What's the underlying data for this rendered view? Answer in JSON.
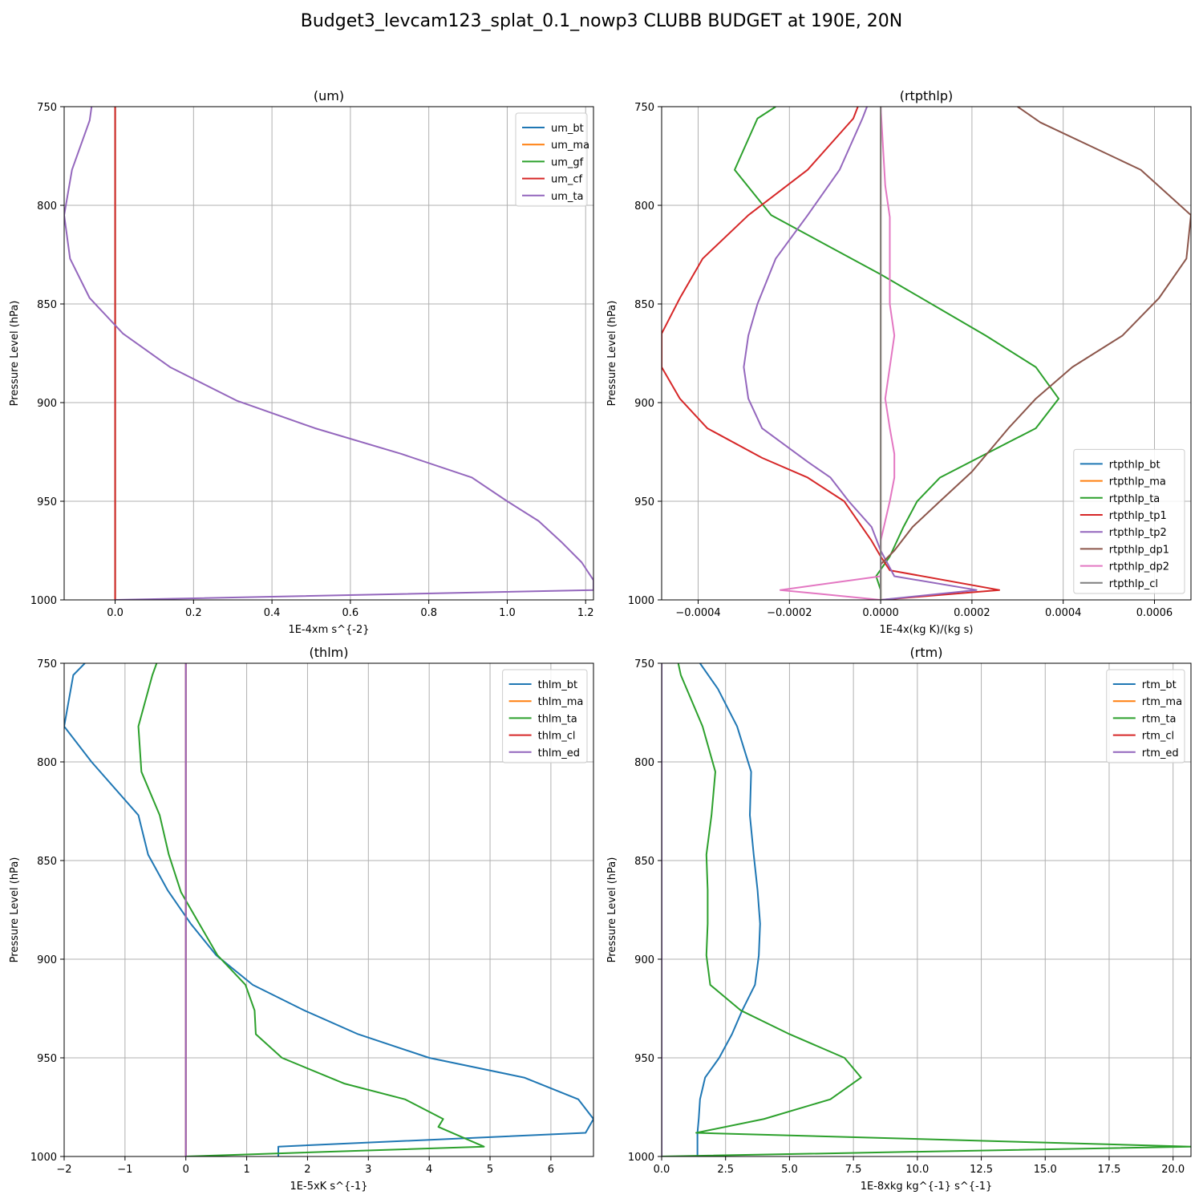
{
  "figure": {
    "title": "Budget3_levcam123_splat_0.1_nowp3 CLUBB BUDGET at 190E, 20N"
  },
  "chart_data": [
    {
      "type": "line",
      "title": "(um)",
      "xlabel": "1E-4xm s^{-2}",
      "ylabel": "Pressure Level (hPa)",
      "xlim": [
        -0.13,
        1.22
      ],
      "ylim": [
        1000,
        750
      ],
      "y_inverted": true,
      "grid": true,
      "legend_position": "upper right",
      "xticks": [
        0.0,
        0.2,
        0.4,
        0.6,
        0.8,
        1.0,
        1.2
      ],
      "xtick_labels": [
        "0.0",
        "0.2",
        "0.4",
        "0.6",
        "0.8",
        "1.0",
        "1.2"
      ],
      "yticks": [
        750,
        800,
        850,
        900,
        950,
        1000
      ],
      "ytick_labels": [
        "750",
        "800",
        "850",
        "900",
        "950",
        "1000"
      ],
      "series": [
        {
          "name": "um_bt",
          "color": "#1f77b4",
          "points": [
            [
              0,
              750
            ],
            [
              0,
              1000
            ]
          ]
        },
        {
          "name": "um_ma",
          "color": "#ff7f0e",
          "points": [
            [
              0,
              750
            ],
            [
              0,
              1000
            ]
          ]
        },
        {
          "name": "um_gf",
          "color": "#2ca02c",
          "points": [
            [
              0,
              750
            ],
            [
              0,
              1000
            ]
          ]
        },
        {
          "name": "um_cf",
          "color": "#d62728",
          "points": [
            [
              0,
              750
            ],
            [
              0,
              1000
            ]
          ]
        },
        {
          "name": "um_ta",
          "color": "#9467bd",
          "points": [
            [
              -0.06,
              750
            ],
            [
              -0.065,
              757
            ],
            [
              -0.11,
              782
            ],
            [
              -0.13,
              805
            ],
            [
              -0.115,
              827
            ],
            [
              -0.065,
              847
            ],
            [
              0.02,
              865
            ],
            [
              0.14,
              882
            ],
            [
              0.31,
              899
            ],
            [
              0.51,
              913
            ],
            [
              0.73,
              926
            ],
            [
              0.91,
              938
            ],
            [
              1.0,
              950
            ],
            [
              1.08,
              960
            ],
            [
              1.14,
              971
            ],
            [
              1.19,
              981
            ],
            [
              1.22,
              990
            ],
            [
              1.22,
              995
            ],
            [
              0.0,
              1000
            ]
          ]
        }
      ]
    },
    {
      "type": "line",
      "title": "(rtpthlp)",
      "xlabel": "1E-4x(kg K)/(kg s)",
      "ylabel": "Pressure Level (hPa)",
      "xlim": [
        -0.00048,
        0.00068
      ],
      "ylim": [
        1000,
        750
      ],
      "y_inverted": true,
      "grid": true,
      "legend_position": "lower right",
      "xticks": [
        -0.0004,
        -0.0002,
        0.0,
        0.0002,
        0.0004,
        0.0006
      ],
      "xtick_labels": [
        "−0.0004",
        "−0.0002",
        "0.0000",
        "0.0002",
        "0.0004",
        "0.0006"
      ],
      "yticks": [
        750,
        800,
        850,
        900,
        950,
        1000
      ],
      "ytick_labels": [
        "750",
        "800",
        "850",
        "900",
        "950",
        "1000"
      ],
      "series": [
        {
          "name": "rtpthlp_bt",
          "color": "#1f77b4",
          "points": [
            [
              0,
              750
            ],
            [
              0,
              1000
            ]
          ]
        },
        {
          "name": "rtpthlp_ma",
          "color": "#ff7f0e",
          "points": [
            [
              0,
              750
            ],
            [
              0,
              1000
            ]
          ]
        },
        {
          "name": "rtpthlp_ta",
          "color": "#2ca02c",
          "points": [
            [
              -0.00023,
              750
            ],
            [
              -0.00027,
              756
            ],
            [
              -0.00032,
              782
            ],
            [
              -0.00024,
              805
            ],
            [
              0.0,
              835
            ],
            [
              0.00023,
              866
            ],
            [
              0.00034,
              882
            ],
            [
              0.00039,
              898
            ],
            [
              0.00034,
              913
            ],
            [
              0.00013,
              938
            ],
            [
              8e-05,
              950
            ],
            [
              5e-05,
              963
            ],
            [
              2e-05,
              978
            ],
            [
              -1e-05,
              988
            ],
            [
              0.0,
              995
            ],
            [
              0.0,
              1000
            ]
          ]
        },
        {
          "name": "rtpthlp_tp1",
          "color": "#d62728",
          "points": [
            [
              -5e-05,
              750
            ],
            [
              -6e-05,
              756
            ],
            [
              -0.00016,
              782
            ],
            [
              -0.00029,
              805
            ],
            [
              -0.00039,
              827
            ],
            [
              -0.00044,
              847
            ],
            [
              -0.00048,
              865
            ],
            [
              -0.00048,
              882
            ],
            [
              -0.00044,
              898
            ],
            [
              -0.00038,
              913
            ],
            [
              -0.00026,
              928
            ],
            [
              -0.00016,
              938
            ],
            [
              -8e-05,
              950
            ],
            [
              -2e-05,
              970
            ],
            [
              0.0,
              978
            ],
            [
              2e-05,
              985
            ],
            [
              0.00026,
              995
            ],
            [
              0.0,
              1000
            ]
          ]
        },
        {
          "name": "rtpthlp_tp2",
          "color": "#9467bd",
          "points": [
            [
              -3e-05,
              750
            ],
            [
              -4e-05,
              756
            ],
            [
              -9e-05,
              782
            ],
            [
              -0.00016,
              805
            ],
            [
              -0.00023,
              827
            ],
            [
              -0.00027,
              850
            ],
            [
              -0.00029,
              866
            ],
            [
              -0.0003,
              882
            ],
            [
              -0.00029,
              898
            ],
            [
              -0.00026,
              913
            ],
            [
              -0.00016,
              930
            ],
            [
              -0.00011,
              938
            ],
            [
              -7e-05,
              950
            ],
            [
              -2e-05,
              963
            ],
            [
              0.0,
              975
            ],
            [
              3e-05,
              988
            ],
            [
              0.00021,
              995
            ],
            [
              0.0,
              1000
            ]
          ]
        },
        {
          "name": "rtpthlp_dp1",
          "color": "#8c564b",
          "points": [
            [
              0.0003,
              750
            ],
            [
              0.00035,
              758
            ],
            [
              0.00057,
              782
            ],
            [
              0.00068,
              805
            ],
            [
              0.00067,
              827
            ],
            [
              0.00061,
              847
            ],
            [
              0.00053,
              866
            ],
            [
              0.00042,
              882
            ],
            [
              0.00034,
              898
            ],
            [
              0.00028,
              913
            ],
            [
              0.0002,
              935
            ],
            [
              0.00013,
              950
            ],
            [
              7e-05,
              963
            ],
            [
              3e-05,
              975
            ],
            [
              0.0,
              982
            ],
            [
              0.0,
              1000
            ]
          ]
        },
        {
          "name": "rtpthlp_dp2",
          "color": "#e377c2",
          "points": [
            [
              0.0,
              750
            ],
            [
              1e-05,
              790
            ],
            [
              2e-05,
              806
            ],
            [
              2e-05,
              827
            ],
            [
              2e-05,
              850
            ],
            [
              3e-05,
              866
            ],
            [
              2e-05,
              882
            ],
            [
              1e-05,
              898
            ],
            [
              2e-05,
              913
            ],
            [
              3e-05,
              926
            ],
            [
              3e-05,
              938
            ],
            [
              2e-05,
              950
            ],
            [
              0.0,
              970
            ],
            [
              0.0,
              988
            ],
            [
              -0.00022,
              995
            ],
            [
              0.0,
              1000
            ]
          ]
        },
        {
          "name": "rtpthlp_cl",
          "color": "#7f7f7f",
          "points": [
            [
              0.0,
              750
            ],
            [
              0.0,
              1000
            ]
          ]
        }
      ]
    },
    {
      "type": "line",
      "title": "(thlm)",
      "xlabel": "1E-5xK s^{-1}",
      "ylabel": "Pressure Level (hPa)",
      "xlim": [
        -2.0,
        6.7
      ],
      "ylim": [
        1000,
        750
      ],
      "y_inverted": true,
      "grid": true,
      "legend_position": "upper right",
      "xticks": [
        -2,
        -1,
        0,
        1,
        2,
        3,
        4,
        5,
        6
      ],
      "xtick_labels": [
        "−2",
        "−1",
        "0",
        "1",
        "2",
        "3",
        "4",
        "5",
        "6"
      ],
      "yticks": [
        750,
        800,
        850,
        900,
        950,
        1000
      ],
      "ytick_labels": [
        "750",
        "800",
        "850",
        "900",
        "950",
        "1000"
      ],
      "series": [
        {
          "name": "thlm_bt",
          "color": "#1f77b4",
          "points": [
            [
              -1.66,
              750
            ],
            [
              -1.85,
              756
            ],
            [
              -2.0,
              782
            ],
            [
              -1.55,
              800
            ],
            [
              -0.78,
              827
            ],
            [
              -0.62,
              847
            ],
            [
              -0.3,
              865
            ],
            [
              0.08,
              882
            ],
            [
              0.5,
              898
            ],
            [
              1.1,
              913
            ],
            [
              1.95,
              926
            ],
            [
              2.83,
              938
            ],
            [
              4.0,
              950
            ],
            [
              5.56,
              960
            ],
            [
              6.45,
              971
            ],
            [
              6.7,
              981
            ],
            [
              6.57,
              988
            ],
            [
              1.52,
              995
            ],
            [
              1.52,
              1000
            ]
          ]
        },
        {
          "name": "thlm_ma",
          "color": "#ff7f0e",
          "points": [
            [
              0,
              750
            ],
            [
              0,
              1000
            ]
          ]
        },
        {
          "name": "thlm_ta",
          "color": "#2ca02c",
          "points": [
            [
              -0.48,
              750
            ],
            [
              -0.55,
              756
            ],
            [
              -0.78,
              782
            ],
            [
              -0.73,
              805
            ],
            [
              -0.43,
              827
            ],
            [
              -0.28,
              847
            ],
            [
              -0.08,
              866
            ],
            [
              0.22,
              882
            ],
            [
              0.52,
              898
            ],
            [
              0.98,
              913
            ],
            [
              1.13,
              926
            ],
            [
              1.15,
              938
            ],
            [
              1.58,
              950
            ],
            [
              2.6,
              963
            ],
            [
              3.6,
              971
            ],
            [
              4.23,
              981
            ],
            [
              4.15,
              985
            ],
            [
              4.9,
              995
            ],
            [
              0.0,
              1000
            ]
          ]
        },
        {
          "name": "thlm_cl",
          "color": "#d62728",
          "points": [
            [
              0,
              750
            ],
            [
              0,
              1000
            ]
          ]
        },
        {
          "name": "thlm_ed",
          "color": "#9467bd",
          "points": [
            [
              0,
              750
            ],
            [
              0,
              1000
            ]
          ]
        }
      ]
    },
    {
      "type": "line",
      "title": "(rtm)",
      "xlabel": "1E-8xkg kg^{-1} s^{-1}",
      "ylabel": "Pressure Level (hPa)",
      "xlim": [
        0.0,
        20.7
      ],
      "ylim": [
        1000,
        750
      ],
      "y_inverted": true,
      "grid": true,
      "legend_position": "upper right",
      "xticks": [
        0.0,
        2.5,
        5.0,
        7.5,
        10.0,
        12.5,
        15.0,
        17.5,
        20.0
      ],
      "xtick_labels": [
        "0.0",
        "2.5",
        "5.0",
        "7.5",
        "10.0",
        "12.5",
        "15.0",
        "17.5",
        "20.0"
      ],
      "yticks": [
        750,
        800,
        850,
        900,
        950,
        1000
      ],
      "ytick_labels": [
        "750",
        "800",
        "850",
        "900",
        "950",
        "1000"
      ],
      "series": [
        {
          "name": "rtm_bt",
          "color": "#1f77b4",
          "points": [
            [
              1.5,
              750
            ],
            [
              2.2,
              763
            ],
            [
              2.95,
              782
            ],
            [
              3.5,
              805
            ],
            [
              3.45,
              827
            ],
            [
              3.6,
              847
            ],
            [
              3.75,
              865
            ],
            [
              3.85,
              882
            ],
            [
              3.8,
              898
            ],
            [
              3.65,
              913
            ],
            [
              3.15,
              926
            ],
            [
              2.75,
              938
            ],
            [
              2.25,
              950
            ],
            [
              1.7,
              960
            ],
            [
              1.5,
              971
            ],
            [
              1.45,
              981
            ],
            [
              1.4,
              988
            ],
            [
              1.4,
              1000
            ]
          ]
        },
        {
          "name": "rtm_ma",
          "color": "#ff7f0e",
          "points": [
            [
              0,
              750
            ],
            [
              0,
              1000
            ]
          ]
        },
        {
          "name": "rtm_ta",
          "color": "#2ca02c",
          "points": [
            [
              0.65,
              750
            ],
            [
              0.75,
              756
            ],
            [
              1.6,
              782
            ],
            [
              2.1,
              805
            ],
            [
              1.95,
              827
            ],
            [
              1.75,
              847
            ],
            [
              1.8,
              865
            ],
            [
              1.8,
              882
            ],
            [
              1.75,
              898
            ],
            [
              1.9,
              913
            ],
            [
              3.1,
              926
            ],
            [
              5.0,
              938
            ],
            [
              7.15,
              950
            ],
            [
              7.8,
              960
            ],
            [
              6.6,
              971
            ],
            [
              4.0,
              981
            ],
            [
              1.35,
              988
            ],
            [
              20.7,
              995
            ],
            [
              0.0,
              1000
            ]
          ]
        },
        {
          "name": "rtm_cl",
          "color": "#d62728",
          "points": [
            [
              0,
              750
            ],
            [
              0,
              1000
            ]
          ]
        },
        {
          "name": "rtm_ed",
          "color": "#9467bd",
          "points": [
            [
              0,
              750
            ],
            [
              0,
              1000
            ]
          ]
        }
      ]
    }
  ]
}
